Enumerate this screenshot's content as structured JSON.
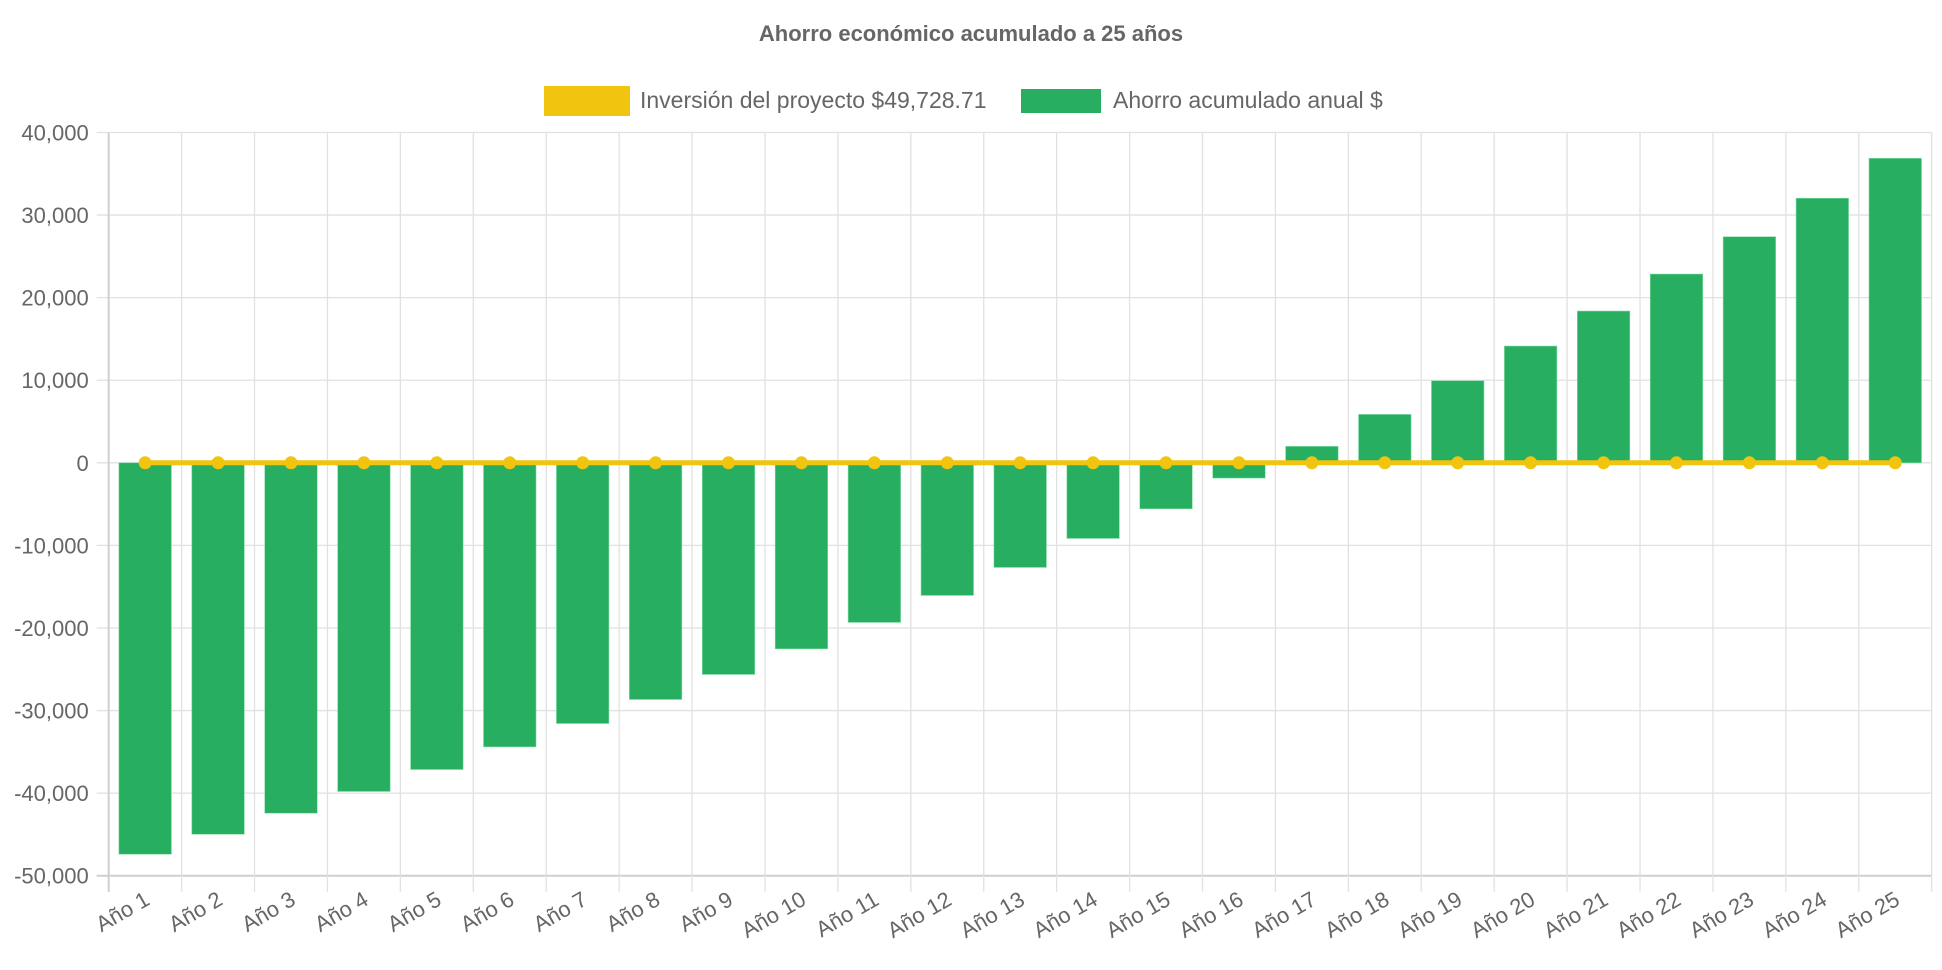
{
  "chart_data": {
    "type": "bar",
    "title": "Ahorro económico acumulado a 25 años",
    "xlabel": "",
    "ylabel": "",
    "ylim": [
      -50000,
      40000
    ],
    "yticks": [
      40000,
      30000,
      20000,
      10000,
      0,
      -10000,
      -20000,
      -30000,
      -40000,
      -50000
    ],
    "ytick_labels": [
      "40,000",
      "30,000",
      "20,000",
      "10,000",
      "0",
      "-10,000",
      "-20,000",
      "-30,000",
      "-40,000",
      "-50,000"
    ],
    "grid": true,
    "legend_position": "top-center",
    "categories": [
      "Año 1",
      "Año 2",
      "Año 3",
      "Año 4",
      "Año 5",
      "Año 6",
      "Año 7",
      "Año 8",
      "Año 9",
      "Año 10",
      "Año 11",
      "Año 12",
      "Año 13",
      "Año 14",
      "Año 15",
      "Año 16",
      "Año 17",
      "Año 18",
      "Año 19",
      "Año 20",
      "Año 21",
      "Año 22",
      "Año 23",
      "Año 24",
      "Año 25"
    ],
    "series": [
      {
        "name": "Inversión del proyecto $49,728.71",
        "type": "line",
        "color": "#f1c40f",
        "values": [
          0,
          0,
          0,
          0,
          0,
          0,
          0,
          0,
          0,
          0,
          0,
          0,
          0,
          0,
          0,
          0,
          0,
          0,
          0,
          0,
          0,
          0,
          0,
          0,
          0
        ]
      },
      {
        "name": "Ahorro acumulado anual $",
        "type": "bar",
        "color": "#27ae60",
        "values": [
          -47400,
          -44980,
          -42430,
          -39800,
          -37140,
          -34400,
          -31570,
          -28660,
          -25630,
          -22530,
          -19330,
          -16060,
          -12670,
          -9160,
          -5570,
          -1850,
          1990,
          5860,
          9940,
          14140,
          18380,
          22860,
          27380,
          32040,
          36870
        ]
      }
    ]
  }
}
